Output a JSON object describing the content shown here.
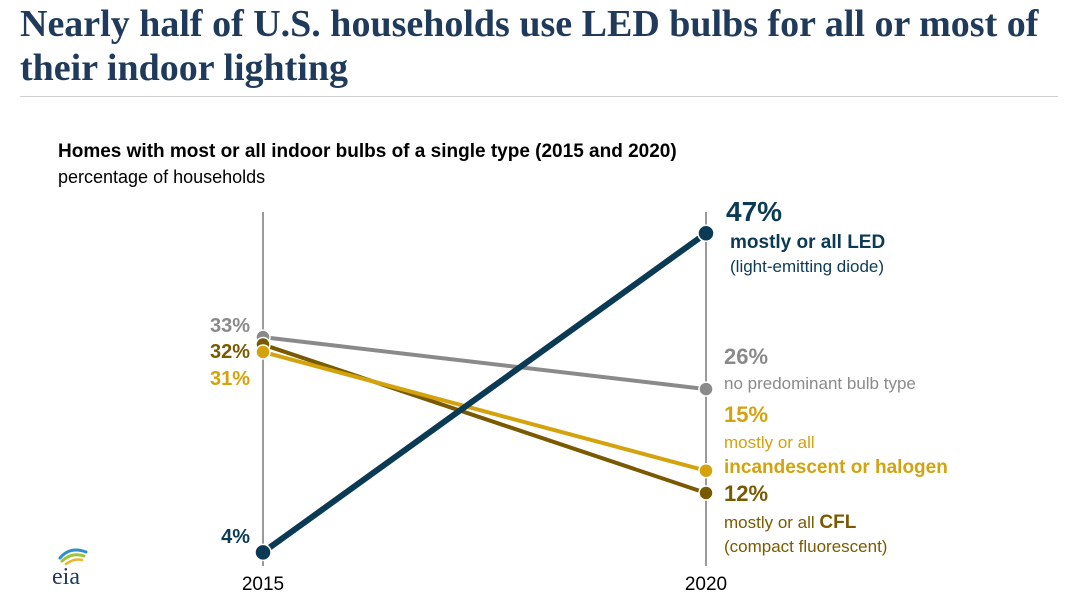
{
  "page": {
    "title": "Nearly half of U.S. households use LED bulbs for all or most of their indoor lighting",
    "logo_text": "eia"
  },
  "chart_data": {
    "type": "line",
    "title": "Homes with most or all indoor bulbs of a single type (2015 and 2020)",
    "subtitle": "percentage of households",
    "x": [
      "2015",
      "2020"
    ],
    "ylim": [
      0,
      50
    ],
    "grid": false,
    "legend": "direct labels at line ends",
    "series": [
      {
        "name": "mostly or all LED",
        "values": [
          4,
          47
        ],
        "start_label": "4%",
        "end_label": "47%",
        "desc_lines": [
          "mostly or all LED",
          "(light-emitting diode)"
        ],
        "color": "#0b3a55"
      },
      {
        "name": "no predominant bulb type",
        "values": [
          33,
          26
        ],
        "start_label": "33%",
        "end_label": "26%",
        "desc_lines": [
          "no predominant bulb type"
        ],
        "color": "#8a8a8a"
      },
      {
        "name": "mostly or all incandescent or halogen",
        "values": [
          31,
          15
        ],
        "start_label": "31%",
        "end_label": "15%",
        "desc_lines": [
          "mostly or all",
          "incandescent or halogen"
        ],
        "color": "#d4a20c"
      },
      {
        "name": "mostly or all CFL",
        "values": [
          32,
          12
        ],
        "start_label": "32%",
        "end_label": "12%",
        "desc_lines": [
          "mostly or all CFL",
          "(compact fluorescent)"
        ],
        "color": "#7a5a00"
      }
    ]
  }
}
